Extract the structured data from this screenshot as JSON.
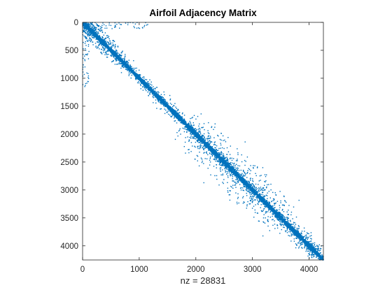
{
  "chart_data": {
    "type": "scatter",
    "subtype": "sparsity-pattern",
    "title": "Airfoil Adjacency Matrix",
    "xlabel": "nz = 28831",
    "ylabel": "",
    "matrix_size": 4253,
    "nonzeros": 28831,
    "xlim": [
      0,
      4253
    ],
    "ylim": [
      0,
      4253
    ],
    "y_reversed": true,
    "xticks": [
      0,
      1000,
      2000,
      3000,
      4000
    ],
    "yticks": [
      0,
      500,
      1000,
      1500,
      2000,
      2500,
      3000,
      3500,
      4000
    ],
    "marker_color": "#0072BD",
    "axis_color": "#262626",
    "grid": false,
    "points_description_band": {
      "main_diagonal_halfwidth_rows": 60,
      "scatter_regions": [
        {
          "rows": [
            0,
            40
          ],
          "cols": [
            0,
            1150
          ],
          "note": "top-row sparse entries"
        },
        {
          "rows": [
            0,
            1150
          ],
          "cols": [
            0,
            40
          ],
          "note": "left-column sparse entries"
        },
        {
          "rows": [
            1900,
            3500
          ],
          "cols": [
            1900,
            3500
          ],
          "note": "wider off-diagonal scatter"
        }
      ]
    }
  }
}
